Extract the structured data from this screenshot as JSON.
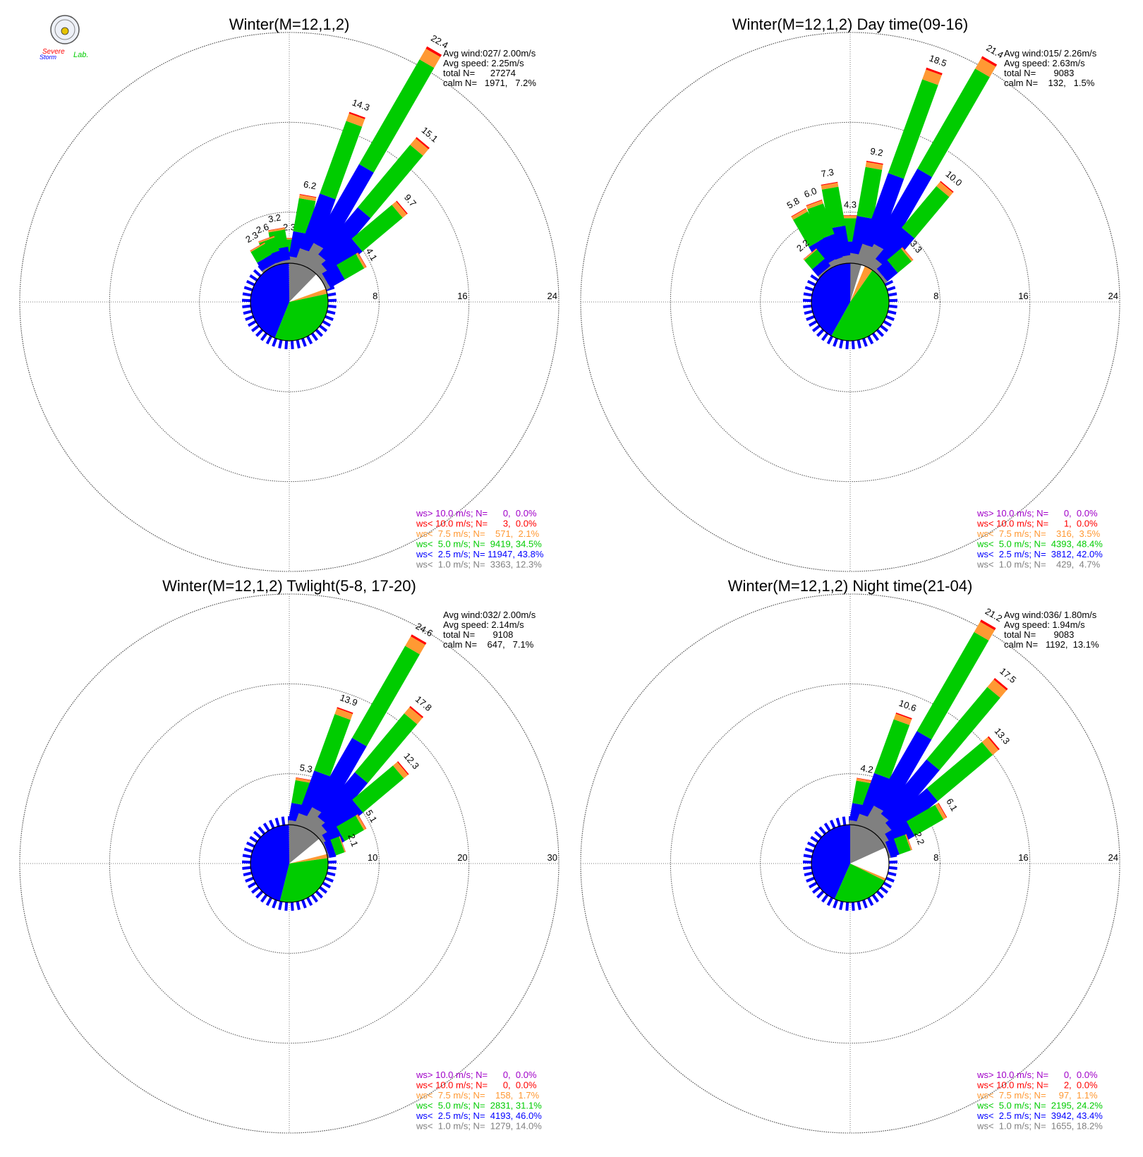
{
  "logo": {
    "text_top": "Severe",
    "text_mid": "Storm",
    "text_lab": "Lab.",
    "colors": [
      "#e00000",
      "#1a3cff",
      "#00b000"
    ]
  },
  "class_colors": {
    "gt10": "#a000c8",
    "lt10": "#ff0000",
    "lt7_5": "#ff9933",
    "lt5": "#00cc00",
    "lt2_5": "#0000ff",
    "lt1": "#808080"
  },
  "chart_data": [
    {
      "type": "polar-bar (wind rose)",
      "title": "Winter(M=12,1,2)",
      "stats": [
        "Avg wind:027/ 2.00m/s",
        "Avg speed: 2.25m/s",
        "total N=      27274",
        "calm N=   1971,   7.2%"
      ],
      "rings": [
        8,
        16,
        24
      ],
      "ring_labels": [
        "8",
        "16",
        "24"
      ],
      "rmax": 24,
      "sectors": [
        {
          "dir": 0,
          "total": 2.3,
          "label": "2.3"
        },
        {
          "dir": 10,
          "total": 6.2,
          "label": "6.2"
        },
        {
          "dir": 20,
          "total": 14.3,
          "label": "14.3"
        },
        {
          "dir": 30,
          "total": 22.4,
          "label": "22.4"
        },
        {
          "dir": 40,
          "total": 15.1,
          "label": "15.1"
        },
        {
          "dir": 50,
          "total": 9.7,
          "label": "9.7"
        },
        {
          "dir": 60,
          "total": 4.1,
          "label": "4.1"
        },
        {
          "dir": -10,
          "total": 3.2,
          "label": "3.2"
        },
        {
          "dir": -20,
          "total": 2.6,
          "label": "2.6"
        },
        {
          "dir": -30,
          "total": 2.3,
          "label": "2.3"
        }
      ],
      "pie": [
        {
          "cls": "lt1",
          "pct": 12.3
        },
        {
          "cls": "calm",
          "pct": 7.2
        },
        {
          "cls": "lt7_5",
          "pct": 2.1
        },
        {
          "cls": "lt5",
          "pct": 34.5
        },
        {
          "cls": "lt2_5",
          "pct": 43.8
        }
      ],
      "legend": [
        {
          "cls": "gt10",
          "text": "ws> 10.0 m/s; N=      0,  0.0%"
        },
        {
          "cls": "lt10",
          "text": "ws< 10.0 m/s; N=      3,  0.0%"
        },
        {
          "cls": "lt7_5",
          "text": "ws<  7.5 m/s; N=    571,  2.1%"
        },
        {
          "cls": "lt5",
          "text": "ws<  5.0 m/s; N=  9419, 34.5%"
        },
        {
          "cls": "lt2_5",
          "text": "ws<  2.5 m/s; N= 11947, 43.8%"
        },
        {
          "cls": "lt1",
          "text": "ws<  1.0 m/s; N=  3363, 12.3%"
        }
      ]
    },
    {
      "type": "polar-bar (wind rose)",
      "title": "Winter(M=12,1,2) Day time(09-16)",
      "stats": [
        "Avg wind:015/ 2.26m/s",
        "Avg speed: 2.63m/s",
        "total N=       9083",
        "calm N=    132,   1.5%"
      ],
      "rings": [
        8,
        16,
        24
      ],
      "ring_labels": [
        "8",
        "16",
        "24"
      ],
      "rmax": 24,
      "sectors": [
        {
          "dir": 0,
          "total": 4.3,
          "label": "4.3"
        },
        {
          "dir": 10,
          "total": 9.2,
          "label": "9.2"
        },
        {
          "dir": 20,
          "total": 18.5,
          "label": "18.5"
        },
        {
          "dir": 30,
          "total": 21.4,
          "label": "21.4"
        },
        {
          "dir": 40,
          "total": 10.0,
          "label": "10.0"
        },
        {
          "dir": 50,
          "total": 3.3,
          "label": "3.3"
        },
        {
          "dir": -10,
          "total": 7.3,
          "label": "7.3"
        },
        {
          "dir": -20,
          "total": 6.0,
          "label": "6.0"
        },
        {
          "dir": -30,
          "total": 5.8,
          "label": "5.8"
        },
        {
          "dir": -40,
          "total": 2.2,
          "label": "2.2"
        }
      ],
      "pie": [
        {
          "cls": "lt1",
          "pct": 4.7
        },
        {
          "cls": "calm",
          "pct": 1.5
        },
        {
          "cls": "lt7_5",
          "pct": 3.5
        },
        {
          "cls": "lt5",
          "pct": 48.4
        },
        {
          "cls": "lt2_5",
          "pct": 42.0
        }
      ],
      "legend": [
        {
          "cls": "gt10",
          "text": "ws> 10.0 m/s; N=      0,  0.0%"
        },
        {
          "cls": "lt10",
          "text": "ws< 10.0 m/s; N=      1,  0.0%"
        },
        {
          "cls": "lt7_5",
          "text": "ws<  7.5 m/s; N=    316,  3.5%"
        },
        {
          "cls": "lt5",
          "text": "ws<  5.0 m/s; N=  4393, 48.4%"
        },
        {
          "cls": "lt2_5",
          "text": "ws<  2.5 m/s; N=  3812, 42.0%"
        },
        {
          "cls": "lt1",
          "text": "ws<  1.0 m/s; N=    429,  4.7%"
        }
      ]
    },
    {
      "type": "polar-bar (wind rose)",
      "title": "Winter(M=12,1,2) Twlight(5-8, 17-20)",
      "stats": [
        "Avg wind:032/ 2.00m/s",
        "Avg speed: 2.14m/s",
        "total N=       9108",
        "calm N=    647,   7.1%"
      ],
      "rings": [
        10,
        20,
        30
      ],
      "ring_labels": [
        "10",
        "20",
        "30"
      ],
      "rmax": 30,
      "sectors": [
        {
          "dir": 10,
          "total": 5.3,
          "label": "5.3"
        },
        {
          "dir": 20,
          "total": 13.9,
          "label": "13.9"
        },
        {
          "dir": 30,
          "total": 24.6,
          "label": "24.6"
        },
        {
          "dir": 40,
          "total": 17.8,
          "label": "17.8"
        },
        {
          "dir": 50,
          "total": 12.3,
          "label": "12.3"
        },
        {
          "dir": 60,
          "total": 5.1,
          "label": "5.1"
        },
        {
          "dir": 70,
          "total": 2.1,
          "label": "2.1"
        }
      ],
      "pie": [
        {
          "cls": "lt1",
          "pct": 14.0
        },
        {
          "cls": "calm",
          "pct": 7.1
        },
        {
          "cls": "lt7_5",
          "pct": 1.7
        },
        {
          "cls": "lt5",
          "pct": 31.1
        },
        {
          "cls": "lt2_5",
          "pct": 46.0
        }
      ],
      "legend": [
        {
          "cls": "gt10",
          "text": "ws> 10.0 m/s; N=      0,  0.0%"
        },
        {
          "cls": "lt10",
          "text": "ws< 10.0 m/s; N=      0,  0.0%"
        },
        {
          "cls": "lt7_5",
          "text": "ws<  7.5 m/s; N=    158,  1.7%"
        },
        {
          "cls": "lt5",
          "text": "ws<  5.0 m/s; N=  2831, 31.1%"
        },
        {
          "cls": "lt2_5",
          "text": "ws<  2.5 m/s; N=  4193, 46.0%"
        },
        {
          "cls": "lt1",
          "text": "ws<  1.0 m/s; N=  1279, 14.0%"
        }
      ]
    },
    {
      "type": "polar-bar (wind rose)",
      "title": "Winter(M=12,1,2) Night time(21-04)",
      "stats": [
        "Avg wind:036/ 1.80m/s",
        "Avg speed: 1.94m/s",
        "total N=       9083",
        "calm N=   1192,  13.1%"
      ],
      "rings": [
        8,
        16,
        24
      ],
      "ring_labels": [
        "8",
        "16",
        "24"
      ],
      "rmax": 24,
      "sectors": [
        {
          "dir": 10,
          "total": 4.2,
          "label": "4.2"
        },
        {
          "dir": 20,
          "total": 10.6,
          "label": "10.6"
        },
        {
          "dir": 30,
          "total": 21.2,
          "label": "21.2"
        },
        {
          "dir": 40,
          "total": 17.5,
          "label": "17.5"
        },
        {
          "dir": 50,
          "total": 13.3,
          "label": "13.3"
        },
        {
          "dir": 60,
          "total": 6.1,
          "label": "6.1"
        },
        {
          "dir": 70,
          "total": 2.2,
          "label": "2.2"
        }
      ],
      "pie": [
        {
          "cls": "lt1",
          "pct": 18.2
        },
        {
          "cls": "calm",
          "pct": 13.1
        },
        {
          "cls": "lt7_5",
          "pct": 1.1
        },
        {
          "cls": "lt5",
          "pct": 24.2
        },
        {
          "cls": "lt2_5",
          "pct": 43.4
        }
      ],
      "legend": [
        {
          "cls": "gt10",
          "text": "ws> 10.0 m/s; N=      0,  0.0%"
        },
        {
          "cls": "lt10",
          "text": "ws< 10.0 m/s; N=      2,  0.0%"
        },
        {
          "cls": "lt7_5",
          "text": "ws<  7.5 m/s; N=     97,  1.1%"
        },
        {
          "cls": "lt5",
          "text": "ws<  5.0 m/s; N=  2195, 24.2%"
        },
        {
          "cls": "lt2_5",
          "text": "ws<  2.5 m/s; N=  3942, 43.4%"
        },
        {
          "cls": "lt1",
          "text": "ws<  1.0 m/s; N=  1655, 18.2%"
        }
      ]
    }
  ]
}
